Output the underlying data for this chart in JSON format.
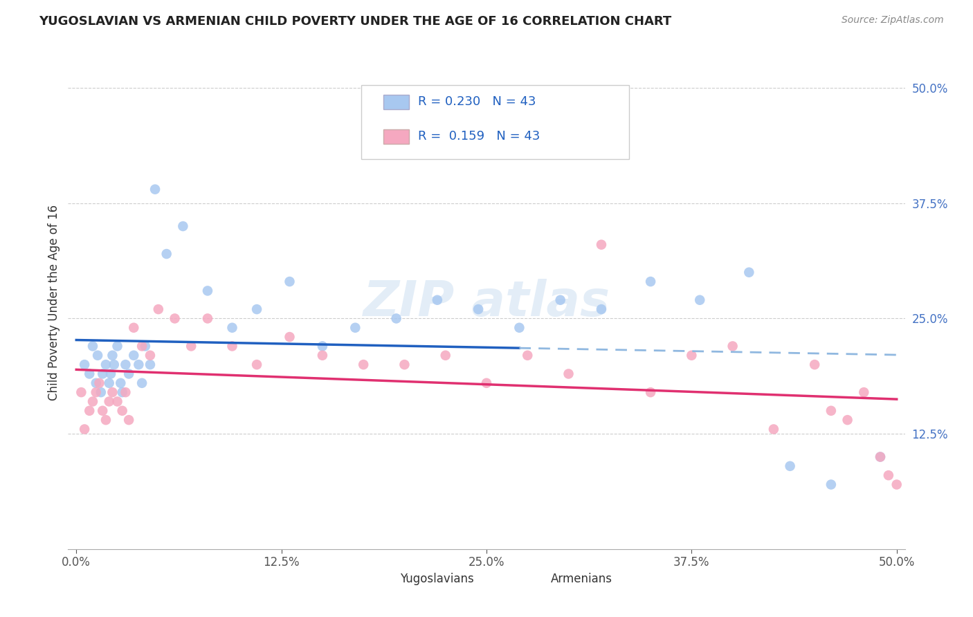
{
  "title": "YUGOSLAVIAN VS ARMENIAN CHILD POVERTY UNDER THE AGE OF 16 CORRELATION CHART",
  "source": "Source: ZipAtlas.com",
  "ylabel": "Child Poverty Under the Age of 16",
  "xlim": [
    -0.005,
    0.505
  ],
  "ylim": [
    0.0,
    0.535
  ],
  "xtick_labels": [
    "0.0%",
    "12.5%",
    "25.0%",
    "37.5%",
    "50.0%"
  ],
  "xtick_vals": [
    0.0,
    0.125,
    0.25,
    0.375,
    0.5
  ],
  "ytick_labels": [
    "12.5%",
    "25.0%",
    "37.5%",
    "50.0%"
  ],
  "ytick_vals": [
    0.125,
    0.25,
    0.375,
    0.5
  ],
  "R_blue": 0.23,
  "N_blue": 43,
  "R_pink": 0.159,
  "N_pink": 43,
  "blue_color": "#A8C8F0",
  "pink_color": "#F5A8C0",
  "line_blue": "#2060C0",
  "line_pink": "#E03070",
  "yugoslav_x": [
    0.005,
    0.008,
    0.01,
    0.012,
    0.013,
    0.015,
    0.016,
    0.018,
    0.02,
    0.021,
    0.022,
    0.023,
    0.025,
    0.027,
    0.028,
    0.03,
    0.032,
    0.035,
    0.038,
    0.04,
    0.042,
    0.045,
    0.048,
    0.055,
    0.065,
    0.08,
    0.095,
    0.11,
    0.13,
    0.15,
    0.17,
    0.195,
    0.22,
    0.245,
    0.27,
    0.295,
    0.32,
    0.35,
    0.38,
    0.41,
    0.435,
    0.46,
    0.49
  ],
  "yugoslav_y": [
    0.2,
    0.19,
    0.22,
    0.18,
    0.21,
    0.17,
    0.19,
    0.2,
    0.18,
    0.19,
    0.21,
    0.2,
    0.22,
    0.18,
    0.17,
    0.2,
    0.19,
    0.21,
    0.2,
    0.18,
    0.22,
    0.2,
    0.39,
    0.32,
    0.35,
    0.28,
    0.24,
    0.26,
    0.29,
    0.22,
    0.24,
    0.25,
    0.27,
    0.26,
    0.24,
    0.27,
    0.26,
    0.29,
    0.27,
    0.3,
    0.09,
    0.07,
    0.1
  ],
  "armenian_x": [
    0.003,
    0.005,
    0.008,
    0.01,
    0.012,
    0.014,
    0.016,
    0.018,
    0.02,
    0.022,
    0.025,
    0.028,
    0.03,
    0.032,
    0.035,
    0.04,
    0.045,
    0.05,
    0.06,
    0.07,
    0.08,
    0.095,
    0.11,
    0.13,
    0.15,
    0.175,
    0.2,
    0.225,
    0.25,
    0.275,
    0.3,
    0.32,
    0.35,
    0.375,
    0.4,
    0.425,
    0.45,
    0.46,
    0.47,
    0.48,
    0.49,
    0.495,
    0.5
  ],
  "armenian_y": [
    0.17,
    0.13,
    0.15,
    0.16,
    0.17,
    0.18,
    0.15,
    0.14,
    0.16,
    0.17,
    0.16,
    0.15,
    0.17,
    0.14,
    0.24,
    0.22,
    0.21,
    0.26,
    0.25,
    0.22,
    0.25,
    0.22,
    0.2,
    0.23,
    0.21,
    0.2,
    0.2,
    0.21,
    0.18,
    0.21,
    0.19,
    0.33,
    0.17,
    0.21,
    0.22,
    0.13,
    0.2,
    0.15,
    0.14,
    0.17,
    0.1,
    0.08,
    0.07
  ]
}
